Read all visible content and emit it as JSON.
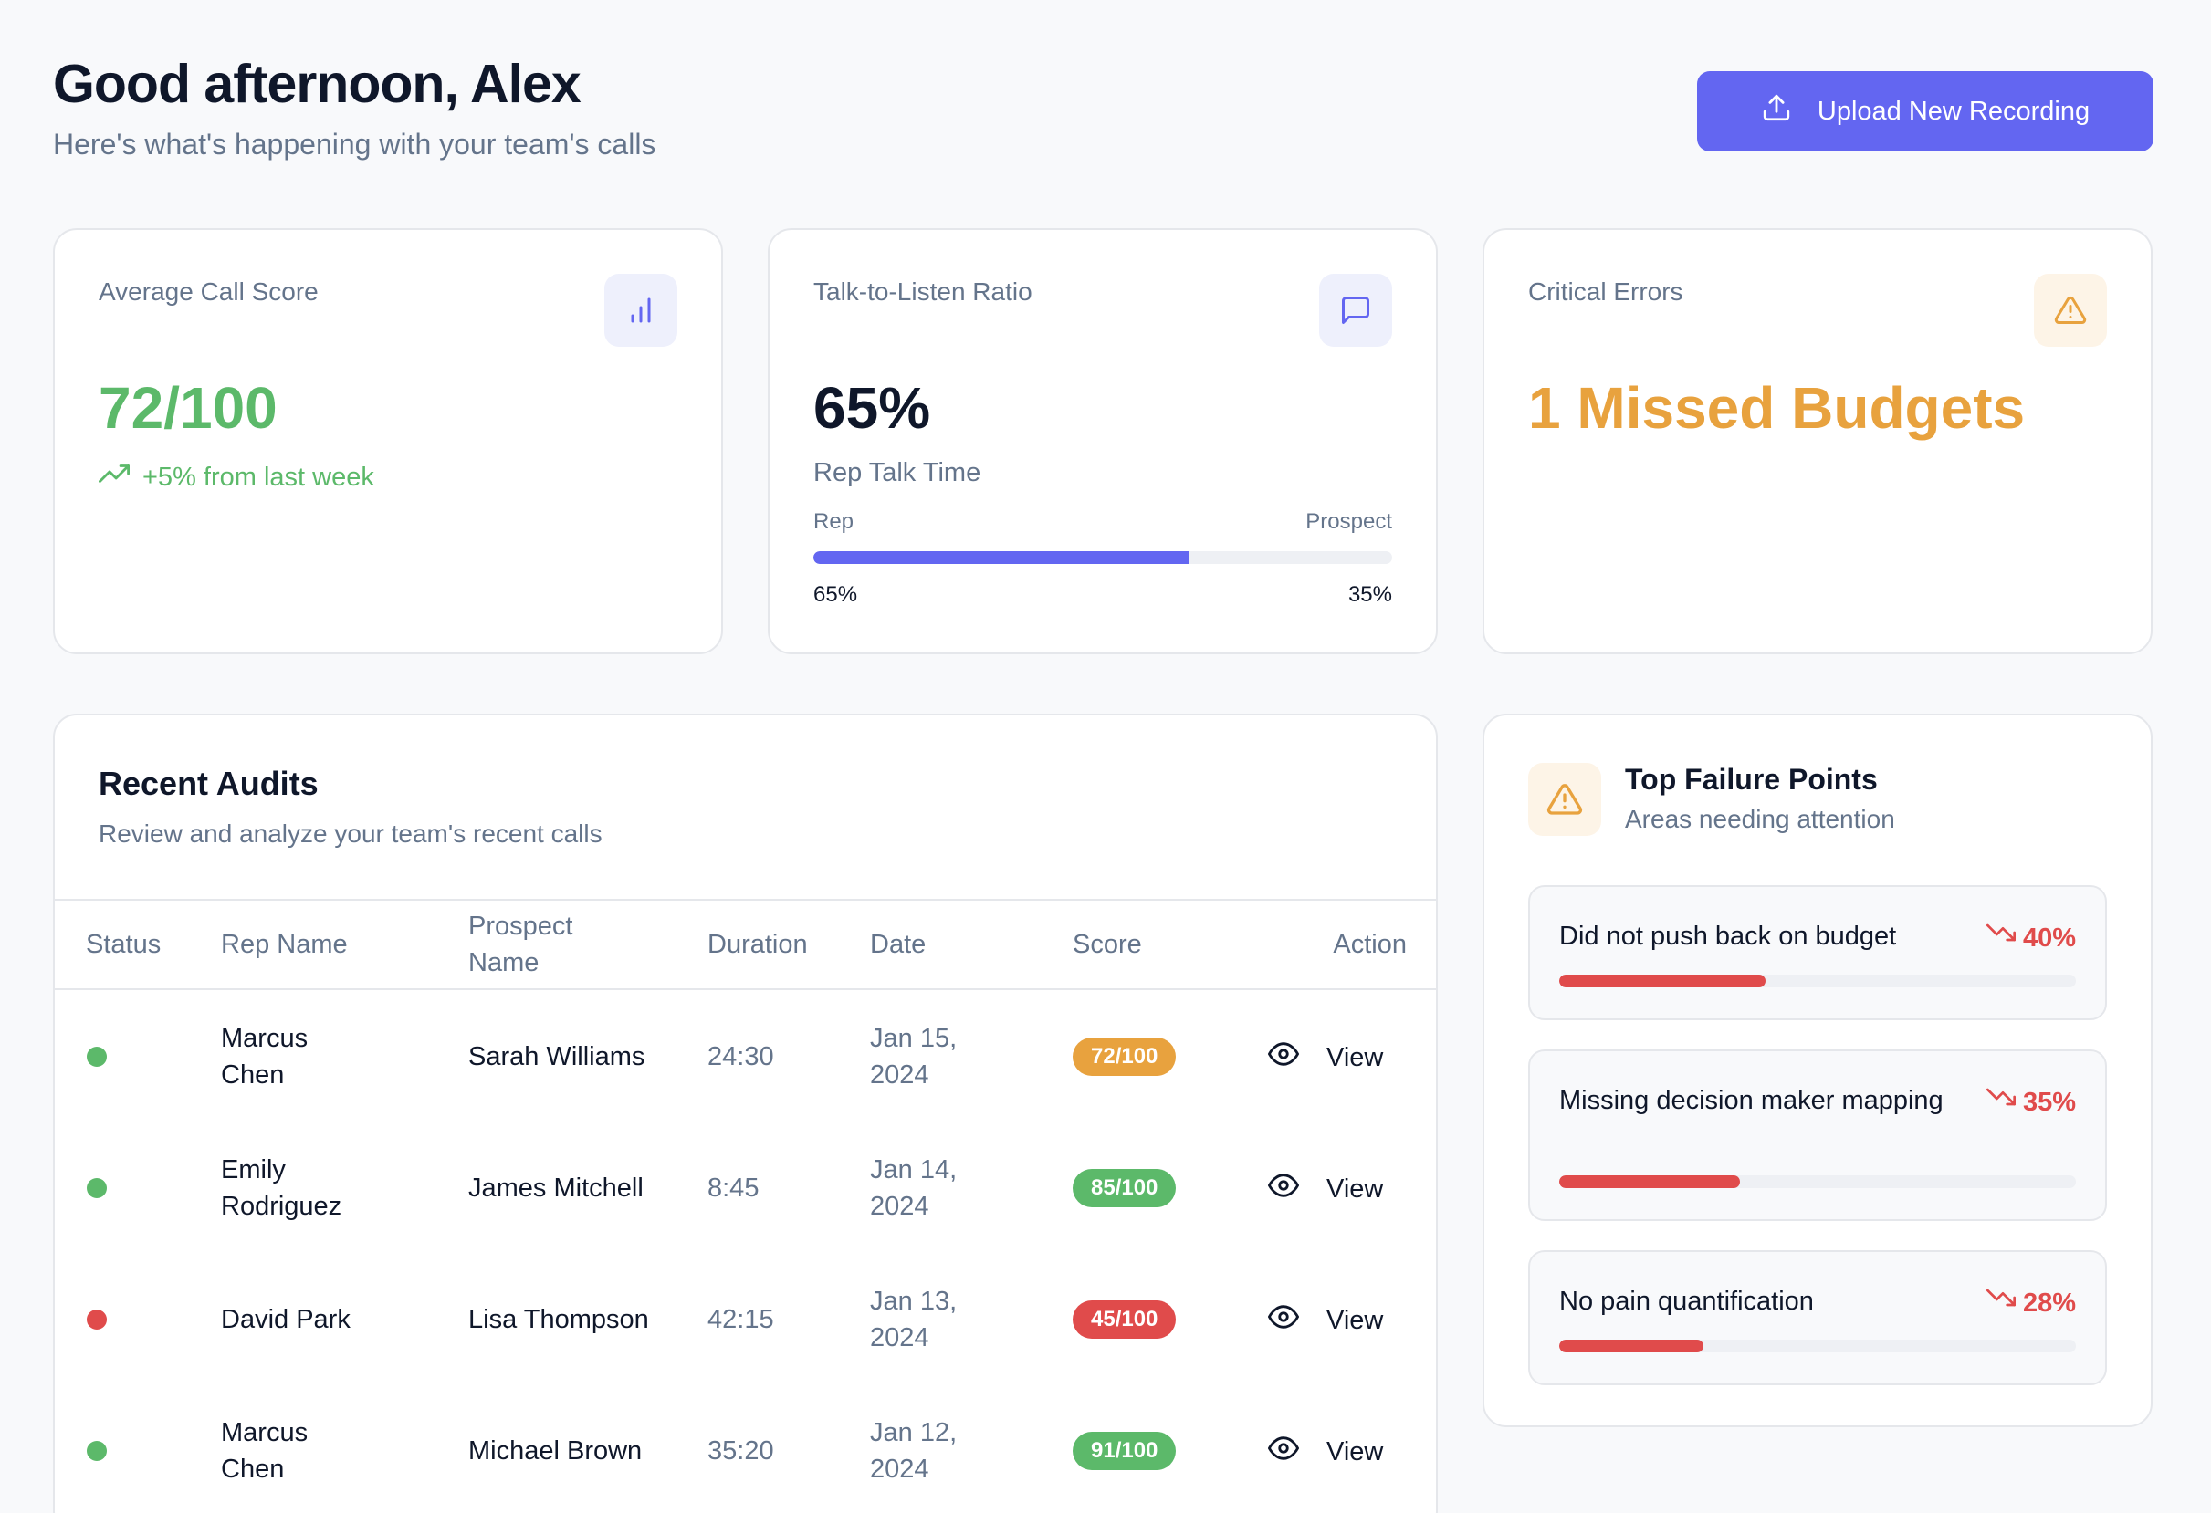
{
  "header": {
    "greeting": "Good afternoon, Alex",
    "subtitle": "Here's what's happening with your team's calls",
    "upload_label": "Upload New Recording"
  },
  "cards": {
    "score": {
      "label": "Average Call Score",
      "value": "72/100",
      "trend": "+5% from last week",
      "icon": "bar-chart-icon"
    },
    "ratio": {
      "label": "Talk-to-Listen Ratio",
      "value": "65%",
      "caption": "Rep Talk Time",
      "left_label": "Rep",
      "right_label": "Prospect",
      "left_value": "65%",
      "right_value": "35%",
      "rep_fraction": 0.65,
      "icon": "message-square-icon"
    },
    "errors": {
      "label": "Critical Errors",
      "value": "1 Missed Budgets",
      "icon": "alert-triangle-icon"
    }
  },
  "audits": {
    "title": "Recent Audits",
    "subtitle": "Review and analyze your team's recent calls",
    "columns": {
      "status": "Status",
      "rep": "Rep Name",
      "prospect": "Prospect Name",
      "duration": "Duration",
      "date": "Date",
      "score": "Score",
      "action": "Action"
    },
    "rows": [
      {
        "status": "good",
        "rep": "Marcus Chen",
        "prospect": "Sarah Williams",
        "duration": "24:30",
        "date": "Jan 15, 2024",
        "score": "72/100",
        "score_color": "#e8a23e",
        "action": "View"
      },
      {
        "status": "good",
        "rep": "Emily Rodriguez",
        "prospect": "James Mitchell",
        "duration": "8:45",
        "date": "Jan 14, 2024",
        "score": "85/100",
        "score_color": "#5cb96a",
        "action": "View"
      },
      {
        "status": "bad",
        "rep": "David Park",
        "prospect": "Lisa Thompson",
        "duration": "42:15",
        "date": "Jan 13, 2024",
        "score": "45/100",
        "score_color": "#e04b4b",
        "action": "View"
      },
      {
        "status": "good",
        "rep": "Marcus Chen",
        "prospect": "Michael Brown",
        "duration": "35:20",
        "date": "Jan 12, 2024",
        "score": "91/100",
        "score_color": "#5cb96a",
        "action": "View"
      }
    ]
  },
  "failure_points": {
    "title": "Top Failure Points",
    "subtitle": "Areas needing attention",
    "items": [
      {
        "label": "Did not push back on budget",
        "percent": "40%",
        "fraction": 0.4
      },
      {
        "label": "Missing decision maker mapping",
        "percent": "35%",
        "fraction": 0.35
      },
      {
        "label": "No pain quantification",
        "percent": "28%",
        "fraction": 0.28
      }
    ]
  },
  "colors": {
    "accent": "#6366f1",
    "success": "#5cb96a",
    "warning": "#e8a23e",
    "danger": "#e04b4b"
  }
}
